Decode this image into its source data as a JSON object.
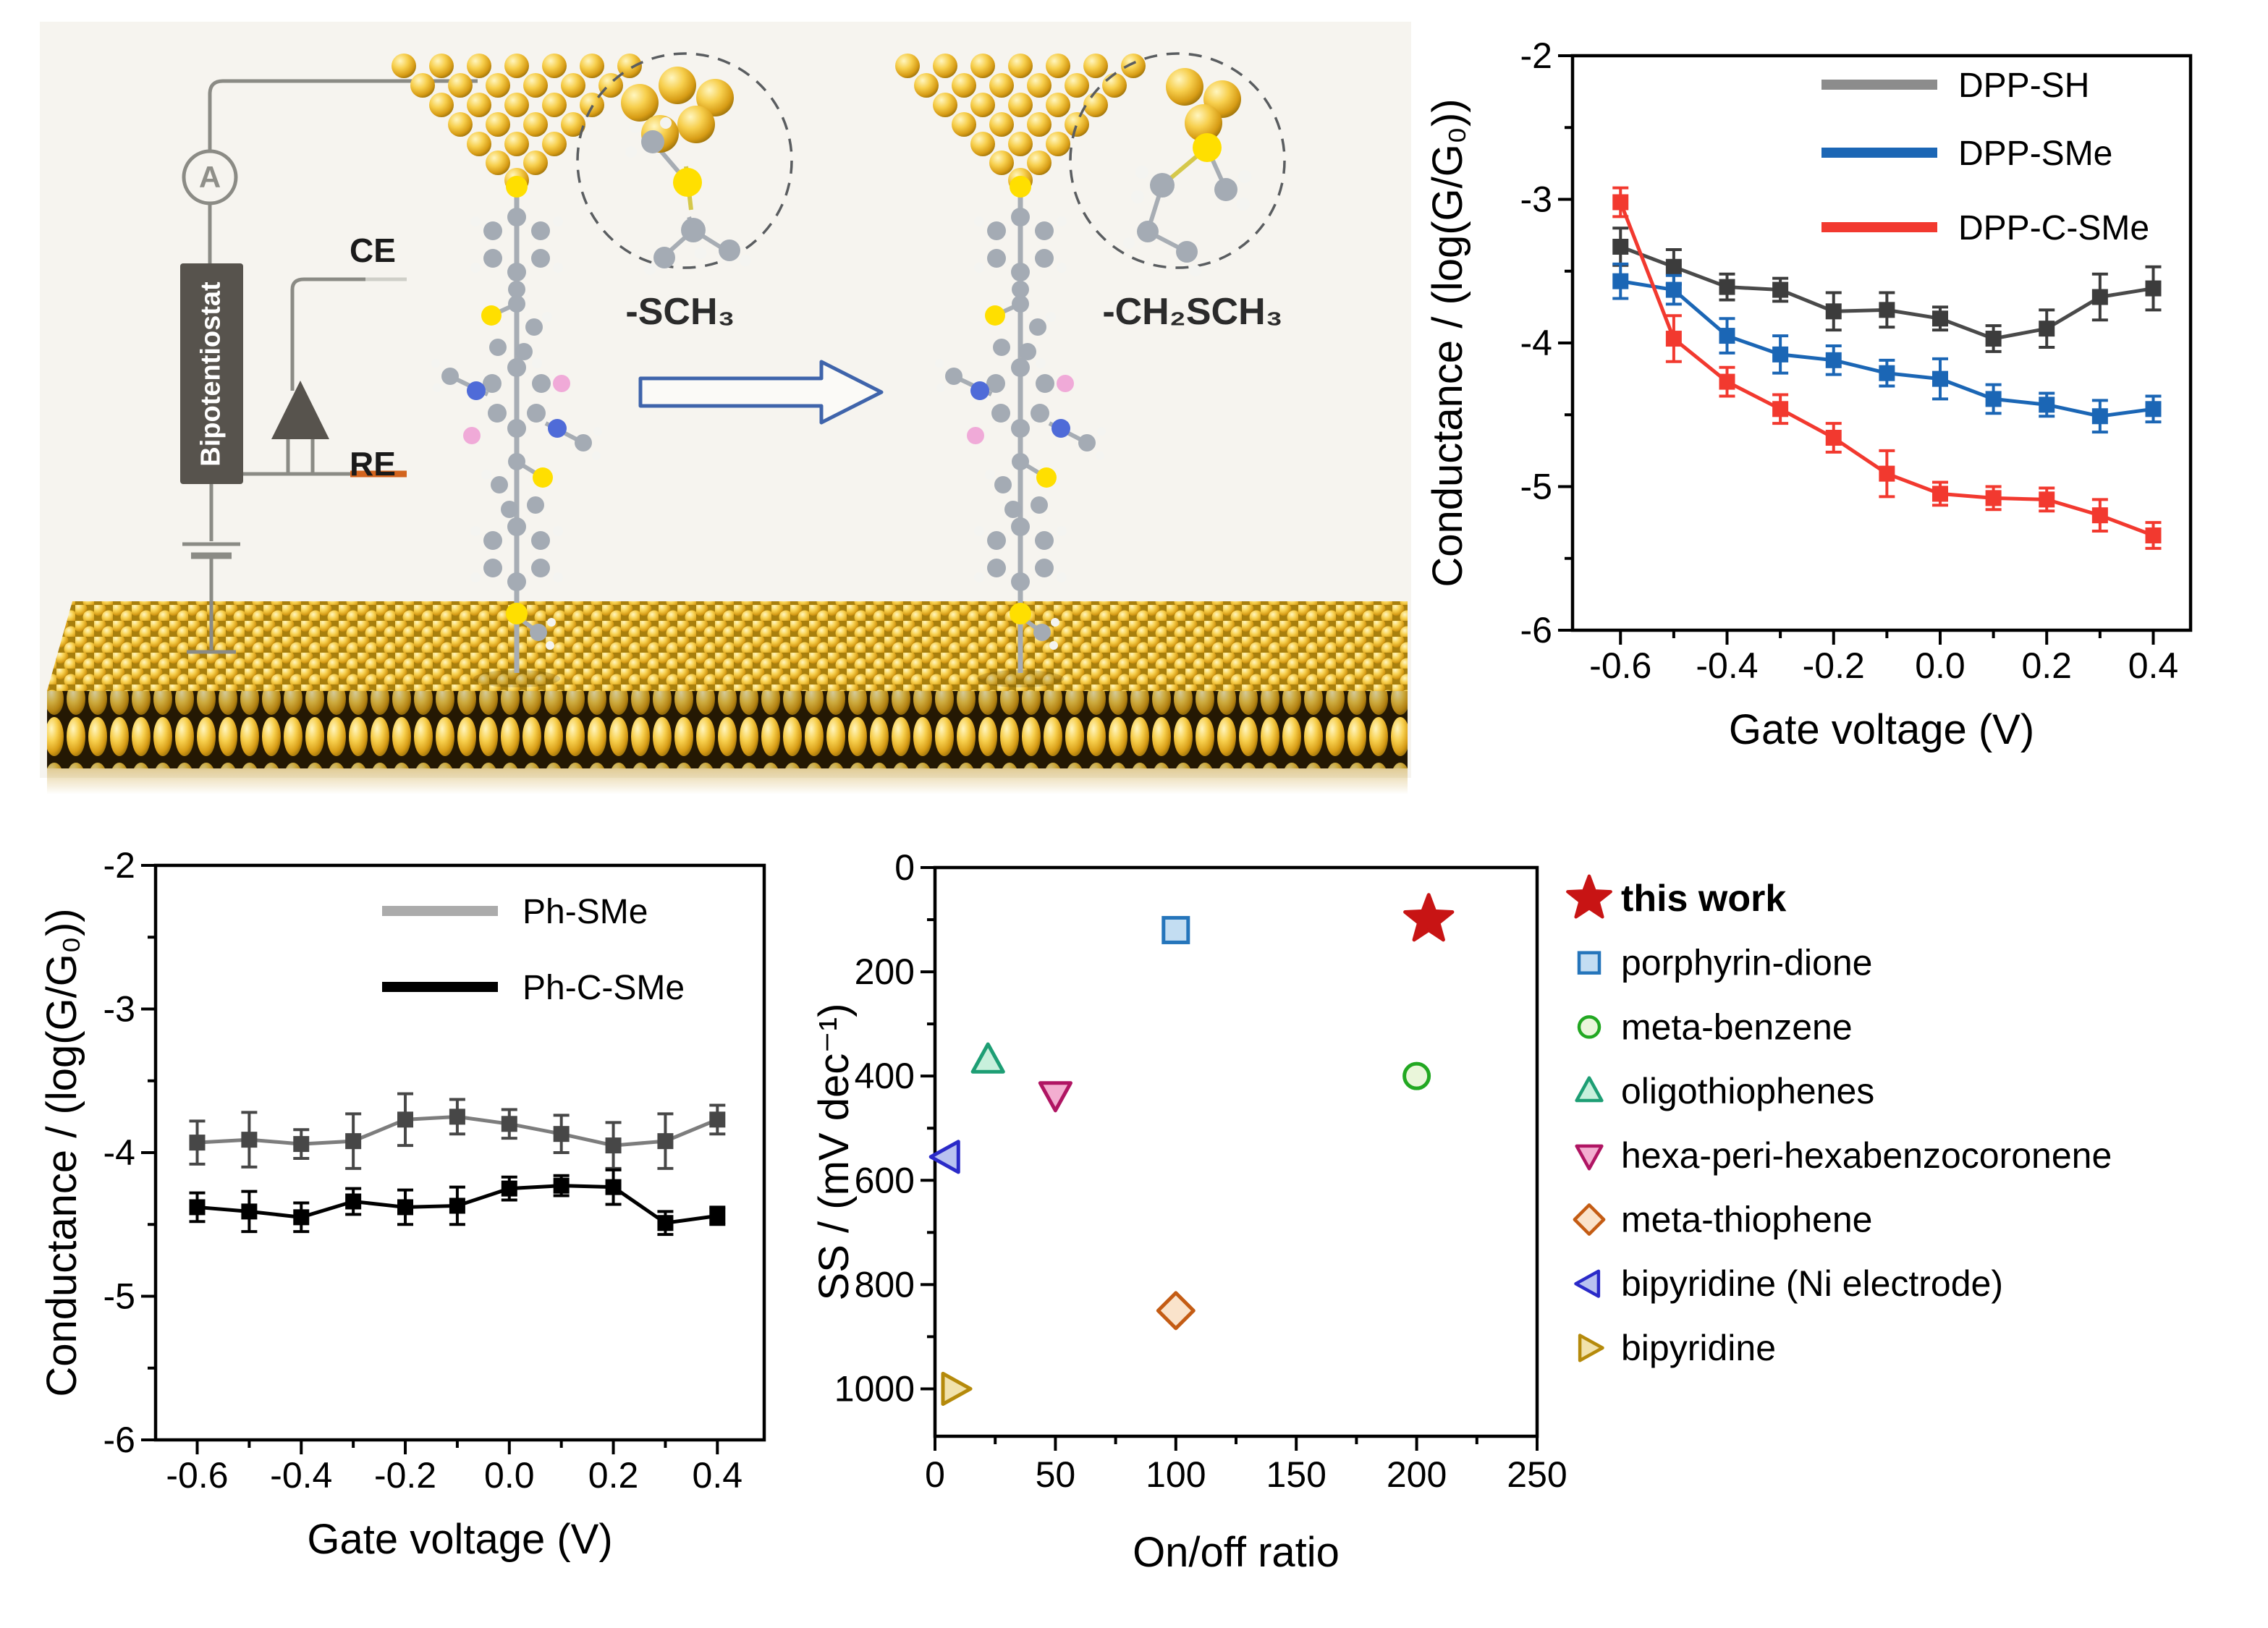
{
  "illustration": {
    "ammeter_label": "A",
    "instrument_label": "Bipotentiostat",
    "counter_electrode_label": "CE",
    "reference_electrode_label": "RE",
    "anchor_left_caption": "-SCH₃",
    "anchor_right_caption": "-CH₂SCH₃",
    "colors": {
      "gold": "#e9b826",
      "wire_gray": "#8b8b85",
      "instrument_gray": "#57534d",
      "re_wire_orange": "#d2641e",
      "arrow_blue": "#3f64ab",
      "sulfur_yellow": "#ffdf00",
      "carbon_gray": "#a4abb4",
      "nitrogen_blue": "#4f6bd8",
      "oxygen_pink": "#f0aad8",
      "hydrogen_white": "#f4f4f1"
    }
  },
  "chart_data": [
    {
      "type": "line",
      "panel": "top-right",
      "title": "",
      "xlabel": "Gate voltage (V)",
      "ylabel": "Conductance / (log(G/G₀))",
      "xlim": [
        -0.69,
        0.47
      ],
      "ylim": [
        -6,
        -2
      ],
      "x": [
        -0.6,
        -0.5,
        -0.4,
        -0.3,
        -0.2,
        -0.1,
        0.0,
        0.1,
        0.2,
        0.3,
        0.4
      ],
      "xticks": [
        {
          "v": -0.6,
          "label": "-0.6"
        },
        {
          "v": -0.4,
          "label": "-0.4"
        },
        {
          "v": -0.2,
          "label": "-0.2"
        },
        {
          "v": 0.0,
          "label": "0.0"
        },
        {
          "v": 0.2,
          "label": "0.2"
        },
        {
          "v": 0.4,
          "label": "0.4"
        }
      ],
      "xminor": [
        -0.5,
        -0.3,
        -0.1,
        0.1,
        0.3
      ],
      "yticks": [
        {
          "v": -2,
          "label": "-2"
        },
        {
          "v": -3,
          "label": "-3"
        },
        {
          "v": -4,
          "label": "-4"
        },
        {
          "v": -5,
          "label": "-5"
        },
        {
          "v": -6,
          "label": "-6"
        }
      ],
      "yminor": [
        -2.5,
        -3.5,
        -4.5,
        -5.5
      ],
      "grid": false,
      "legend_position": "inside-top-right",
      "series": [
        {
          "name": "DPP-SH",
          "swatch": "#8c8c8c",
          "line": "#4a4a4a",
          "marker": "#3c3c3c",
          "values": [
            -3.33,
            -3.47,
            -3.61,
            -3.63,
            -3.78,
            -3.77,
            -3.83,
            -3.97,
            -3.9,
            -3.68,
            -3.62
          ],
          "errors": [
            0.13,
            0.12,
            0.09,
            0.08,
            0.13,
            0.12,
            0.08,
            0.09,
            0.13,
            0.16,
            0.15
          ]
        },
        {
          "name": "DPP-SMe",
          "swatch": "#1b66b5",
          "line": "#1b66b5",
          "marker": "#1b66b5",
          "values": [
            -3.57,
            -3.63,
            -3.95,
            -4.08,
            -4.12,
            -4.21,
            -4.25,
            -4.39,
            -4.43,
            -4.51,
            -4.46
          ],
          "errors": [
            0.12,
            0.1,
            0.12,
            0.13,
            0.1,
            0.09,
            0.14,
            0.1,
            0.08,
            0.11,
            0.09
          ]
        },
        {
          "name": "DPP-C-SMe",
          "swatch": "#f2392f",
          "line": "#f2392f",
          "marker": "#f2392f",
          "values": [
            -3.02,
            -3.97,
            -4.27,
            -4.46,
            -4.66,
            -4.91,
            -5.05,
            -5.08,
            -5.09,
            -5.2,
            -5.34
          ],
          "errors": [
            0.1,
            0.16,
            0.1,
            0.1,
            0.1,
            0.16,
            0.08,
            0.08,
            0.08,
            0.11,
            0.09
          ]
        }
      ]
    },
    {
      "type": "line",
      "panel": "bottom-left",
      "title": "",
      "xlabel": "Gate voltage (V)",
      "ylabel": "Conductance / (log(G/G₀))",
      "xlim": [
        -0.68,
        0.49
      ],
      "ylim": [
        -6,
        -2
      ],
      "x": [
        -0.6,
        -0.5,
        -0.4,
        -0.3,
        -0.2,
        -0.1,
        0.0,
        0.1,
        0.2,
        0.3,
        0.4
      ],
      "xticks": [
        {
          "v": -0.6,
          "label": "-0.6"
        },
        {
          "v": -0.4,
          "label": "-0.4"
        },
        {
          "v": -0.2,
          "label": "-0.2"
        },
        {
          "v": 0.0,
          "label": "0.0"
        },
        {
          "v": 0.2,
          "label": "0.2"
        },
        {
          "v": 0.4,
          "label": "0.4"
        }
      ],
      "xminor": [
        -0.5,
        -0.3,
        -0.1,
        0.1,
        0.3
      ],
      "yticks": [
        {
          "v": -2,
          "label": "-2"
        },
        {
          "v": -3,
          "label": "-3"
        },
        {
          "v": -4,
          "label": "-4"
        },
        {
          "v": -5,
          "label": "-5"
        },
        {
          "v": -6,
          "label": "-6"
        }
      ],
      "yminor": [
        -2.5,
        -3.5,
        -4.5,
        -5.5
      ],
      "grid": false,
      "legend_position": "inside-top-right",
      "series": [
        {
          "name": "Ph-SMe",
          "swatch": "#ababab",
          "line": "#7d7d7d",
          "marker": "#474747",
          "values": [
            -3.93,
            -3.91,
            -3.94,
            -3.92,
            -3.77,
            -3.75,
            -3.8,
            -3.87,
            -3.95,
            -3.92,
            -3.77
          ],
          "errors": [
            0.15,
            0.19,
            0.1,
            0.19,
            0.18,
            0.12,
            0.1,
            0.13,
            0.16,
            0.19,
            0.1
          ]
        },
        {
          "name": "Ph-C-SMe",
          "swatch": "#000000",
          "line": "#000000",
          "marker": "#000000",
          "values": [
            -4.38,
            -4.41,
            -4.45,
            -4.34,
            -4.38,
            -4.37,
            -4.25,
            -4.23,
            -4.24,
            -4.49,
            -4.44
          ],
          "errors": [
            0.1,
            0.14,
            0.1,
            0.09,
            0.12,
            0.13,
            0.08,
            0.07,
            0.12,
            0.08,
            0.06
          ]
        }
      ]
    },
    {
      "type": "scatter",
      "panel": "bottom-middle",
      "title": "",
      "xlabel": "On/off ratio",
      "ylabel": "SS / (mV dec⁻¹)",
      "xlim": [
        0,
        250
      ],
      "ylim": [
        0,
        1091
      ],
      "y_inverted": true,
      "xticks": [
        {
          "v": 0,
          "label": "0"
        },
        {
          "v": 50,
          "label": "50"
        },
        {
          "v": 100,
          "label": "100"
        },
        {
          "v": 150,
          "label": "150"
        },
        {
          "v": 200,
          "label": "200"
        },
        {
          "v": 250,
          "label": "250"
        }
      ],
      "xminor": [
        25,
        75,
        125,
        175,
        225
      ],
      "yticks": [
        {
          "v": 0,
          "label": "0"
        },
        {
          "v": 200,
          "label": "200"
        },
        {
          "v": 400,
          "label": "400"
        },
        {
          "v": 600,
          "label": "600"
        },
        {
          "v": 800,
          "label": "800"
        },
        {
          "v": 1000,
          "label": "1000"
        }
      ],
      "yminor": [
        100,
        300,
        500,
        700,
        900
      ],
      "grid": false,
      "legend_position": "right-outside",
      "points": [
        {
          "label": "this work",
          "marker": "star",
          "x": 205,
          "y": 100,
          "edge": "#c81414",
          "fill": "#c81414",
          "legend_bold": true
        },
        {
          "label": "porphyrin-dione",
          "marker": "square",
          "x": 100,
          "y": 120,
          "edge": "#2575bb",
          "fill": "#c3ddf2",
          "legend_bold": false
        },
        {
          "label": "meta-benzene",
          "marker": "circle",
          "x": 200,
          "y": 400,
          "edge": "#22a822",
          "fill": "#eaf6da",
          "legend_bold": false
        },
        {
          "label": "oligothiophenes",
          "marker": "triangle-up",
          "x": 22,
          "y": 370,
          "edge": "#1d9e74",
          "fill": "#c8f0dc",
          "legend_bold": false
        },
        {
          "label": "hexa-peri-hexabenzocoronene",
          "marker": "triangle-down",
          "x": 50,
          "y": 435,
          "edge": "#b01563",
          "fill": "#f3aed0",
          "legend_bold": false
        },
        {
          "label": "meta-thiophene",
          "marker": "diamond",
          "x": 100,
          "y": 850,
          "edge": "#c45c14",
          "fill": "#fae3cb",
          "legend_bold": false
        },
        {
          "label": "bipyridine (Ni electrode)",
          "marker": "triangle-left",
          "x": 5,
          "y": 555,
          "edge": "#2a2ac8",
          "fill": "#b9c2f0",
          "legend_bold": false
        },
        {
          "label": "bipyridine",
          "marker": "triangle-right",
          "x": 8,
          "y": 1000,
          "edge": "#b58a0b",
          "fill": "#f1e2ac",
          "legend_bold": false
        }
      ]
    }
  ]
}
